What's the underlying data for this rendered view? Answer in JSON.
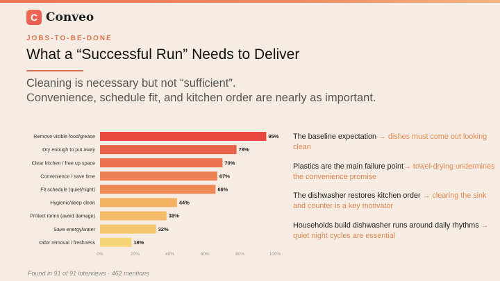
{
  "brand": {
    "logo_letter": "C",
    "name": "Conveo"
  },
  "eyebrow": "JOBS-TO-BE-DONE",
  "title": "What a “Successful Run” Needs to Deliver",
  "subtitle_line1": "Cleaning is necessary but not “sufficient”.",
  "subtitle_line2": "Convenience, schedule fit, and kitchen order are nearly as important.",
  "insights": [
    {
      "lead": "The baseline expectation",
      "arrow": "→",
      "impl": "dishes must come out looking clean"
    },
    {
      "lead": "Plastics are the main failure point",
      "arrow": "→",
      "impl": "towel-drying undermines the convenience promise"
    },
    {
      "lead": "The dishwasher restores kitchen order",
      "arrow": "→",
      "impl": "clearing the sink and counter is a key motivator"
    },
    {
      "lead": "Households build dishwasher runs around daily rhythms",
      "arrow": "→",
      "impl": "quiet night cycles are essential"
    }
  ],
  "footnote": "Found in 91 of 91 interviews · 462 mentions",
  "chart_data": {
    "type": "bar",
    "orientation": "horizontal",
    "categories": [
      "Remove visible food/grease",
      "Dry enough to put away",
      "Clear kitchen / free up space",
      "Convenience / save time",
      "Fit schedule (quiet/night)",
      "Hygienic/deep clean",
      "Protect items (avoid damage)",
      "Save energy/water",
      "Odor removal / freshness"
    ],
    "values": [
      95,
      78,
      70,
      67,
      66,
      44,
      38,
      32,
      18
    ],
    "value_labels": [
      "95%",
      "78%",
      "70%",
      "67%",
      "66%",
      "44%",
      "38%",
      "32%",
      "18%"
    ],
    "xlim": [
      0,
      100
    ],
    "xticks": [
      "0%",
      "20%",
      "40%",
      "60%",
      "80%",
      "100%"
    ],
    "grid": false,
    "colors": [
      "#e8483f",
      "#e9624a",
      "#ec7550",
      "#ee8153",
      "#ef8a56",
      "#f3b063",
      "#f4bb68",
      "#f6c86e",
      "#f7d478"
    ]
  }
}
